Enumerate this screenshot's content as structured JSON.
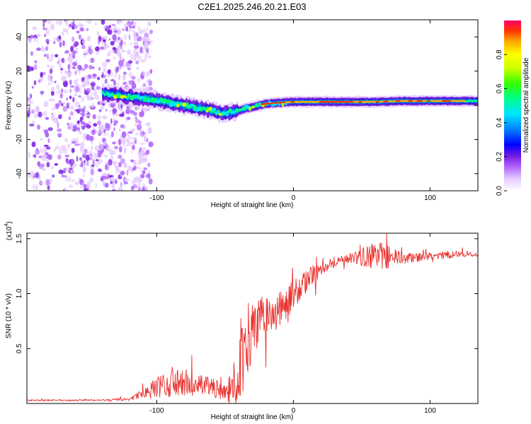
{
  "title": "C2E1.2025.246.20.21.E03",
  "chart_data": [
    {
      "type": "heatmap",
      "title": "C2E1.2025.246.20.21.E03",
      "xlabel": "Height of straight line (km)",
      "ylabel": "Frequency (Hz)",
      "xlim": [
        -195,
        135
      ],
      "ylim": [
        -50,
        50
      ],
      "xticks": [
        -100,
        0,
        100
      ],
      "xtick_labels": [
        "-100",
        "0",
        "100"
      ],
      "yticks": [
        -40,
        -20,
        0,
        20,
        40
      ],
      "ytick_labels": [
        "-40",
        "-20",
        "0",
        "20",
        "40"
      ],
      "noise_region_km": [
        -195,
        -110
      ],
      "signal_start_km": -140,
      "ridge": {
        "x": [
          -140,
          -120,
          -100,
          -80,
          -60,
          -52,
          -40,
          -30,
          -20,
          -10,
          0,
          20,
          40,
          60,
          80,
          100,
          120,
          135
        ],
        "y": [
          7,
          5,
          3,
          0,
          -3,
          -5,
          -3,
          -1,
          1,
          1.5,
          2,
          2,
          2,
          2,
          2.5,
          2.5,
          2.5,
          2.5
        ]
      },
      "colorbar": {
        "label": "Normalized spectral amplitude",
        "range": [
          0,
          1
        ],
        "ticks": [
          0.0,
          0.2,
          0.4,
          0.6,
          0.8
        ],
        "tick_labels": [
          "0.0",
          "0.2",
          "0.4",
          "0.6",
          "0.8"
        ]
      }
    },
    {
      "type": "line",
      "xlabel": "Height of straight line (km)",
      "ylabel": "SNR (10 * v/v)",
      "yscale_label": "(x10",
      "yscale_exponent": "4",
      "xlim": [
        -195,
        135
      ],
      "ylim": [
        0,
        15500
      ],
      "xticks": [
        -100,
        0,
        100
      ],
      "xtick_labels": [
        "-100",
        "0",
        "100"
      ],
      "yticks": [
        5000,
        10000,
        15000
      ],
      "ytick_labels": [
        "0.5",
        "1.0",
        "1.5"
      ],
      "series": [
        {
          "name": "SNR",
          "color": "#e8322e",
          "x": [
            -195,
            -170,
            -140,
            -120,
            -110,
            -100,
            -90,
            -80,
            -70,
            -60,
            -50,
            -45,
            -42,
            -40,
            -38,
            -35,
            -30,
            -25,
            -20,
            -15,
            -10,
            -5,
            0,
            5,
            10,
            15,
            20,
            25,
            30,
            40,
            50,
            60,
            70,
            80,
            90,
            100,
            110,
            120,
            135
          ],
          "y": [
            300,
            300,
            300,
            400,
            900,
            1500,
            1700,
            1900,
            1600,
            1500,
            1000,
            1200,
            2500,
            3500,
            4500,
            5500,
            6500,
            7500,
            7800,
            8200,
            8500,
            9200,
            10000,
            10500,
            11200,
            11800,
            12300,
            12600,
            12900,
            13200,
            13300,
            13500,
            13300,
            13200,
            13300,
            13400,
            13500,
            13600,
            13600
          ],
          "noise": [
            60,
            60,
            60,
            150,
            400,
            900,
            1200,
            1300,
            1000,
            900,
            700,
            1800,
            3000,
            3500,
            4000,
            3500,
            2600,
            2200,
            2000,
            1800,
            1600,
            1500,
            1300,
            1200,
            1000,
            900,
            700,
            600,
            500,
            400,
            800,
            1300,
            1100,
            500,
            400,
            350,
            350,
            300,
            250
          ]
        }
      ]
    }
  ],
  "colors": {
    "colormap": [
      "#ffffff",
      "#e6ccff",
      "#b266ff",
      "#7a1fe0",
      "#3a1fd4",
      "#0000ff",
      "#0080ff",
      "#00e5ff",
      "#00ff80",
      "#33ff00",
      "#ccff00",
      "#ffff00",
      "#ffa500",
      "#ff3300",
      "#ff0066"
    ],
    "line": "#e8322e"
  }
}
